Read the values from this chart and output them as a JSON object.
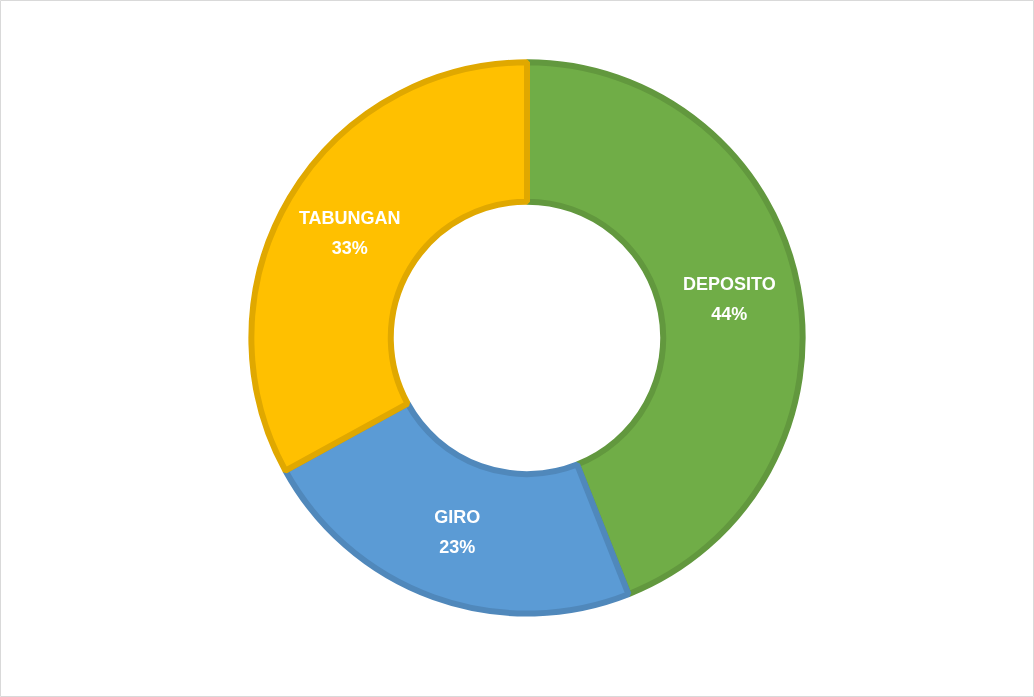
{
  "chart_data": {
    "type": "donut",
    "categories": [
      "DEPOSITO",
      "GIRO",
      "TABUNGAN"
    ],
    "values": [
      44,
      23,
      33
    ],
    "colors": [
      "#70ad47",
      "#5b9bd5",
      "#ffc000"
    ],
    "value_labels": [
      "44%",
      "23%",
      "33%"
    ],
    "legend": false
  }
}
